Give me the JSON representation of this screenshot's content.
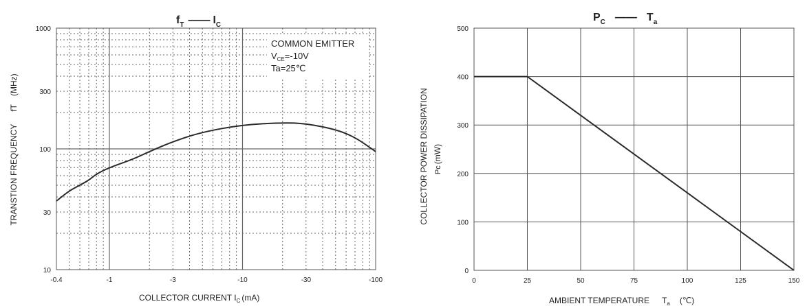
{
  "chart_data": [
    {
      "type": "line",
      "title": "fT —— IC",
      "title_parts": {
        "f": "f",
        "f_sub": "T",
        "dash": "——",
        "i": "I",
        "i_sub": "C"
      },
      "xlabel": "COLLECTOR CURRENT I",
      "xlabel_sub": "C",
      "xlabel_unit": "(mA)",
      "ylabel": "TRANSTION FREQUENCY",
      "ylabel_symbol": "fT",
      "ylabel_unit": "(MHz)",
      "x_scale": "log",
      "y_scale": "log",
      "xlim": [
        -0.4,
        -100
      ],
      "ylim": [
        10,
        1000
      ],
      "x_ticks": [
        -0.4,
        -1,
        -3,
        -10,
        -30,
        -100
      ],
      "x_tick_labels": [
        "-0.4",
        "-1",
        "-3",
        "-10",
        "-30",
        "-100"
      ],
      "y_ticks": [
        10,
        30,
        100,
        300,
        1000
      ],
      "y_tick_labels": [
        "10",
        "30",
        "100",
        "300",
        "1000"
      ],
      "annotation": {
        "line1": "COMMON EMITTER",
        "line2_pre": "V",
        "line2_sub": "CE",
        "line2_post": "=-10V",
        "line3": "Ta=25℃"
      },
      "grid": true,
      "series": [
        {
          "x": [
            -0.4,
            -0.5,
            -0.6,
            -0.7,
            -0.8,
            -1,
            -1.5,
            -2,
            -3,
            -5,
            -10,
            -20,
            -30,
            -50,
            -70,
            -100
          ],
          "y": [
            37,
            45,
            50,
            55,
            62,
            70,
            82,
            95,
            115,
            138,
            158,
            165,
            162,
            145,
            125,
            95
          ]
        }
      ]
    },
    {
      "type": "line",
      "title": "PC —— Ta",
      "title_parts": {
        "p": "P",
        "p_sub": "C",
        "dash": "——",
        "t": "T",
        "t_sub": "a"
      },
      "xlabel": "AMBIENT TEMPERATURE",
      "xlabel_symbol": "T",
      "xlabel_sub": "a",
      "xlabel_unit": "(℃)",
      "ylabel": "COLLECTOR POWER DISSIPATION",
      "ylabel_symbol": "Pc",
      "ylabel_unit": "(mW)",
      "xlim": [
        0,
        150
      ],
      "ylim": [
        0,
        500
      ],
      "x_ticks": [
        0,
        25,
        50,
        75,
        100,
        125,
        150
      ],
      "y_ticks": [
        0,
        100,
        200,
        300,
        400,
        500
      ],
      "grid": true,
      "series": [
        {
          "x": [
            0,
            25,
            150
          ],
          "y": [
            400,
            400,
            0
          ]
        }
      ]
    }
  ]
}
